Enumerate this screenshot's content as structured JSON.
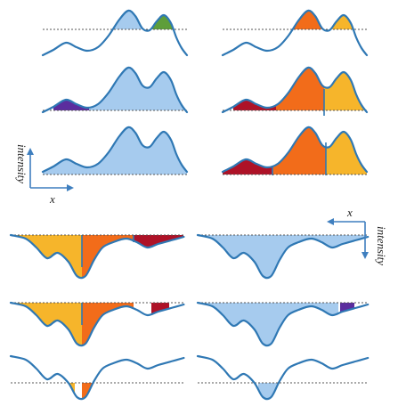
{
  "labels": {
    "top_axis_x": "x",
    "top_axis_y": "intensity",
    "bottom_axis_x": "x",
    "bottom_axis_y": "intensity"
  },
  "colors": {
    "curve": "#2f78b4",
    "light_blue": "#a6cbee",
    "orange": "#f26c1a",
    "yellow": "#f6b52b",
    "dark_red": "#ae1227",
    "green": "#5e9e3a",
    "purple": "#5b2d9e",
    "axis": "#3f7fbf"
  }
}
